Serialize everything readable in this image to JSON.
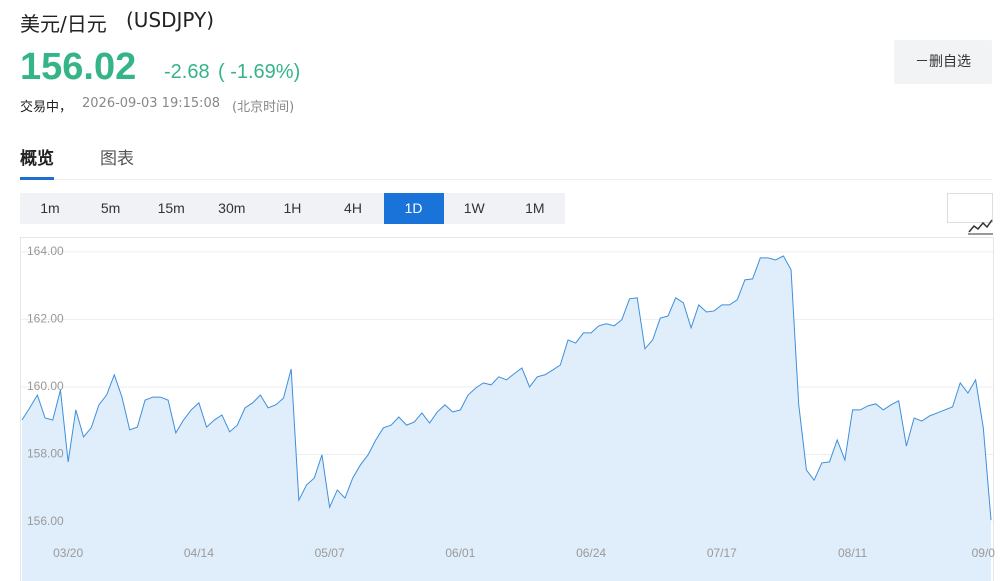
{
  "header": {
    "title": "美元/日元",
    "symbol": "(USDJPY)",
    "price": "156.02",
    "change": "-2.68",
    "change_pct": "( -1.69%)",
    "status": "交易中，",
    "time": "2026-09-03 19:15:08",
    "timezone": "(北京时间)",
    "button": "－删自选"
  },
  "tabs": [
    {
      "label": "概览",
      "active": true
    },
    {
      "label": "图表"
    }
  ],
  "intervals": [
    {
      "label": "1m"
    },
    {
      "label": "5m"
    },
    {
      "label": "15m"
    },
    {
      "label": "30m"
    },
    {
      "label": "1H"
    },
    {
      "label": "4H"
    },
    {
      "label": "1D",
      "active": true
    },
    {
      "label": "1W"
    },
    {
      "label": "1M"
    }
  ],
  "chart_data": {
    "type": "area",
    "color": "#3f8fdc",
    "fill": "#e0eefb",
    "grid": true,
    "ylim": [
      154.58,
      164.41
    ],
    "yticks": [
      {
        "value": 156,
        "label": "156.00"
      },
      {
        "value": 158,
        "label": "158.00"
      },
      {
        "value": 160,
        "label": "160.00"
      },
      {
        "value": 162,
        "label": "162.00"
      },
      {
        "value": 164,
        "label": "164.00"
      }
    ],
    "categories": [
      null,
      null,
      null,
      null,
      null,
      null,
      "03/20",
      null,
      null,
      null,
      null,
      null,
      null,
      null,
      null,
      null,
      null,
      null,
      null,
      null,
      null,
      null,
      null,
      "04/14",
      null,
      null,
      null,
      null,
      null,
      null,
      null,
      null,
      null,
      null,
      null,
      null,
      null,
      null,
      null,
      null,
      "05/07",
      null,
      null,
      null,
      null,
      null,
      null,
      null,
      null,
      null,
      null,
      null,
      null,
      null,
      null,
      null,
      null,
      "06/01",
      null,
      null,
      null,
      null,
      null,
      null,
      null,
      null,
      null,
      null,
      null,
      null,
      null,
      null,
      null,
      null,
      "06/24",
      null,
      null,
      null,
      null,
      null,
      null,
      null,
      null,
      null,
      null,
      null,
      null,
      null,
      null,
      null,
      null,
      "07/17",
      null,
      null,
      null,
      null,
      null,
      null,
      null,
      null,
      null,
      null,
      null,
      null,
      null,
      null,
      null,
      null,
      "08/11",
      null,
      null,
      null,
      null,
      null,
      null,
      null,
      null,
      null,
      null,
      null,
      null,
      null,
      null,
      null,
      null,
      "09/0",
      null
    ],
    "values": [
      159.02,
      159.38,
      159.76,
      159.08,
      159.02,
      159.91,
      157.78,
      159.32,
      158.52,
      158.79,
      159.47,
      159.76,
      160.36,
      159.7,
      158.73,
      158.81,
      159.61,
      159.7,
      159.7,
      159.61,
      158.64,
      159.02,
      159.32,
      159.53,
      158.81,
      159.02,
      159.17,
      158.67,
      158.87,
      159.38,
      159.53,
      159.76,
      159.38,
      159.47,
      159.67,
      160.53,
      156.65,
      157.1,
      157.3,
      157.99,
      156.44,
      156.95,
      156.71,
      157.3,
      157.69,
      157.99,
      158.43,
      158.79,
      158.87,
      159.11,
      158.87,
      158.96,
      159.23,
      158.93,
      159.26,
      159.47,
      159.26,
      159.32,
      159.76,
      159.97,
      160.12,
      160.06,
      160.3,
      160.21,
      160.39,
      160.56,
      160.0,
      160.3,
      160.36,
      160.5,
      160.65,
      161.39,
      161.3,
      161.6,
      161.6,
      161.81,
      161.87,
      161.81,
      161.99,
      162.61,
      162.64,
      161.13,
      161.39,
      162.04,
      162.1,
      162.64,
      162.49,
      161.75,
      162.43,
      162.22,
      162.25,
      162.43,
      162.43,
      162.58,
      163.17,
      163.2,
      163.82,
      163.82,
      163.76,
      163.88,
      163.47,
      159.47,
      157.54,
      157.24,
      157.75,
      157.78,
      158.43,
      157.84,
      159.32,
      159.32,
      159.44,
      159.5,
      159.32,
      159.47,
      159.59,
      158.25,
      159.08,
      158.99,
      159.14,
      159.23,
      159.32,
      159.41,
      160.12,
      159.82,
      160.21,
      158.79,
      156.06
    ]
  }
}
